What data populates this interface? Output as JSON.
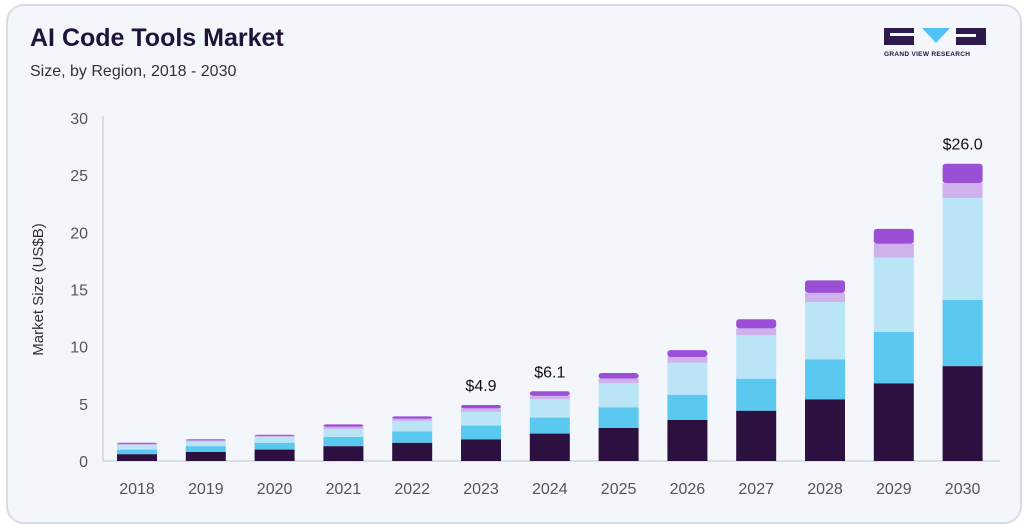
{
  "header": {
    "title": "AI Code Tools Market",
    "subtitle": "Size, by Region, 2018 - 2030"
  },
  "logo": {
    "text": "GRAND VIEW RESEARCH",
    "color_dark": "#2c1a4a",
    "color_accent": "#4fc3f7"
  },
  "chart_data": {
    "type": "bar",
    "stacked": true,
    "categories": [
      "2018",
      "2019",
      "2020",
      "2021",
      "2022",
      "2023",
      "2024",
      "2025",
      "2026",
      "2027",
      "2028",
      "2029",
      "2030"
    ],
    "ylabel": "Market Size (US$B)",
    "xlabel": "",
    "ylim": [
      0,
      30
    ],
    "yticks": [
      0,
      5,
      10,
      15,
      20,
      25,
      30
    ],
    "series": [
      {
        "color": "#2c1140",
        "values": [
          0.6,
          0.8,
          1.0,
          1.3,
          1.6,
          1.9,
          2.4,
          2.9,
          3.6,
          4.4,
          5.4,
          6.8,
          8.3
        ]
      },
      {
        "color": "#5bc8f0",
        "values": [
          0.4,
          0.5,
          0.6,
          0.8,
          1.0,
          1.2,
          1.4,
          1.8,
          2.2,
          2.8,
          3.5,
          4.5,
          5.8
        ]
      },
      {
        "color": "#b9e5f7",
        "values": [
          0.4,
          0.4,
          0.5,
          0.7,
          0.9,
          1.2,
          1.6,
          2.1,
          2.8,
          3.8,
          5.0,
          6.5,
          8.9
        ]
      },
      {
        "color": "#cfb1ec",
        "values": [
          0.1,
          0.1,
          0.1,
          0.2,
          0.2,
          0.3,
          0.3,
          0.4,
          0.5,
          0.6,
          0.8,
          1.2,
          1.3
        ]
      },
      {
        "color": "#9b4fd6",
        "values": [
          0.1,
          0.1,
          0.1,
          0.2,
          0.2,
          0.3,
          0.4,
          0.5,
          0.6,
          0.8,
          1.1,
          1.3,
          1.7
        ]
      }
    ],
    "annotations": [
      {
        "category": "2023",
        "label": "$4.9"
      },
      {
        "category": "2024",
        "label": "$6.1"
      },
      {
        "category": "2030",
        "label": "$26.0"
      }
    ],
    "grid": false,
    "legend": "none"
  }
}
